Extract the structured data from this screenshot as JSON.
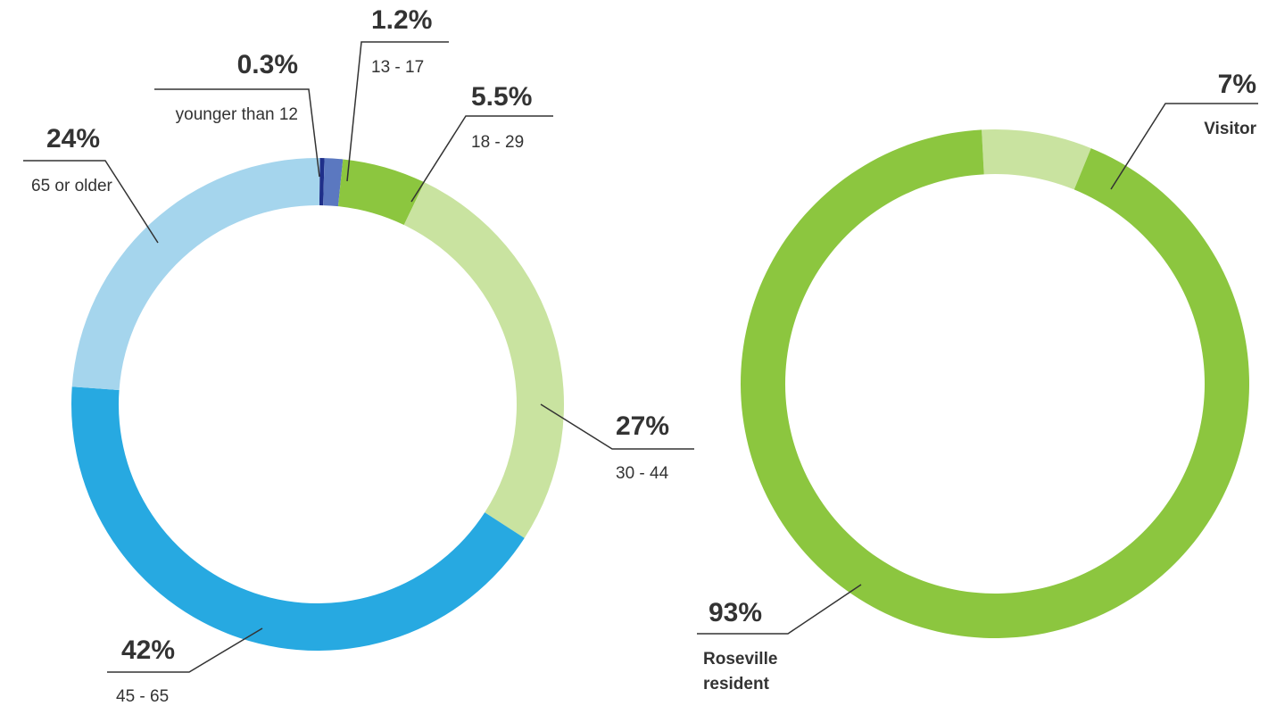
{
  "chart_data": [
    {
      "type": "pie",
      "variant": "donut",
      "slices": [
        {
          "label": "younger than 12",
          "value": 0.3,
          "value_label": "0.3%",
          "color": "#1f2f8a"
        },
        {
          "label": "13 - 17",
          "value": 1.2,
          "value_label": "1.2%",
          "color": "#5b78c0"
        },
        {
          "label": "18 - 29",
          "value": 5.5,
          "value_label": "5.5%",
          "color": "#8cc63f"
        },
        {
          "label": "30 - 44",
          "value": 27,
          "value_label": "27%",
          "color": "#c9e3a0"
        },
        {
          "label": "45 - 65",
          "value": 42,
          "value_label": "42%",
          "color": "#27a9e1"
        },
        {
          "label": "65 or older",
          "value": 24,
          "value_label": "24%",
          "color": "#a5d5ed"
        }
      ]
    },
    {
      "type": "pie",
      "variant": "donut",
      "slices": [
        {
          "label": "Visitor",
          "value": 7,
          "value_label": "7%",
          "color": "#c9e3a0"
        },
        {
          "label": "Roseville resident",
          "label_lines": [
            "Roseville",
            "resident"
          ],
          "value": 93,
          "value_label": "93%",
          "color": "#8cc63f"
        }
      ]
    }
  ]
}
